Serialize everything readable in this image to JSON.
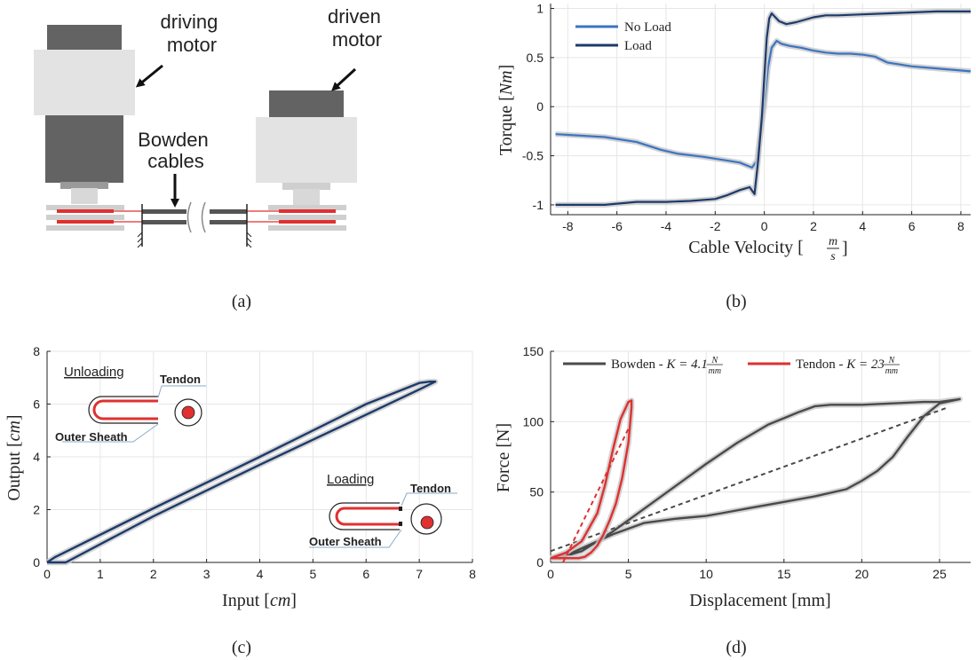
{
  "panels": {
    "a": {
      "caption": "(a)",
      "label_driving": "driving\nmotor",
      "label_driven": "driven\nmotor",
      "label_bowden": "Bowden\ncables",
      "colors": {
        "motor_dark": "#636363",
        "motor_light": "#e3e3e3",
        "cable": "#555555",
        "tendon": "#e03030",
        "rail": "#cfcfcf"
      }
    },
    "b": {
      "caption": "(b)"
    },
    "c": {
      "caption": "(c)",
      "inset_unloading": {
        "title": "Unloading",
        "tendon": "Tendon",
        "sheath": "Outer Sheath"
      },
      "inset_loading": {
        "title": "Loading",
        "tendon": "Tendon",
        "sheath": "Outer Sheath"
      }
    },
    "d": {
      "caption": "(d)"
    }
  },
  "chart_data": [
    {
      "id": "b",
      "type": "line",
      "title": "",
      "xlabel": "Cable Velocity",
      "xlabel_unit": {
        "num": "m",
        "den": "s"
      },
      "ylabel": "Torque",
      "ylabel_unit": "Nm",
      "xlim": [
        -8.7,
        8.4
      ],
      "ylim": [
        -1.1,
        1.05
      ],
      "xticks": [
        -8,
        -6,
        -4,
        -2,
        0,
        2,
        4,
        6,
        8
      ],
      "yticks": [
        -1,
        -0.5,
        0,
        0.5,
        1
      ],
      "ytick_labels": [
        "-1",
        "-0.5",
        "0",
        "0.5",
        "1"
      ],
      "grid": true,
      "legend": "top-left",
      "series": [
        {
          "name": "No Load",
          "color": "#3c74c2",
          "x": [
            -8.5,
            -6.5,
            -5.2,
            -4.2,
            -3.5,
            -2.5,
            -1.5,
            -1.0,
            -0.5,
            -0.3,
            -0.2,
            0.0,
            0.15,
            0.3,
            0.5,
            0.7,
            1.0,
            1.5,
            2.0,
            2.5,
            3.0,
            3.5,
            4.0,
            4.5,
            5.0,
            6.0,
            7.0,
            8.4
          ],
          "y": [
            -0.28,
            -0.31,
            -0.36,
            -0.44,
            -0.48,
            -0.51,
            -0.55,
            -0.57,
            -0.62,
            -0.55,
            -0.35,
            0.0,
            0.4,
            0.6,
            0.67,
            0.64,
            0.62,
            0.6,
            0.57,
            0.55,
            0.54,
            0.54,
            0.53,
            0.51,
            0.45,
            0.41,
            0.39,
            0.36
          ]
        },
        {
          "name": "Load",
          "color": "#1d3a6b",
          "x": [
            -8.5,
            -6.5,
            -5.2,
            -4.0,
            -3.0,
            -2.0,
            -1.5,
            -1.0,
            -0.6,
            -0.4,
            -0.25,
            -0.1,
            0.0,
            0.1,
            0.2,
            0.3,
            0.45,
            0.6,
            0.9,
            1.3,
            2.0,
            2.5,
            3.0,
            4.0,
            5.0,
            6.0,
            7.0,
            8.4
          ],
          "y": [
            -1.0,
            -1.0,
            -0.97,
            -0.97,
            -0.96,
            -0.94,
            -0.9,
            -0.85,
            -0.82,
            -0.89,
            -0.55,
            -0.1,
            0.3,
            0.7,
            0.9,
            0.95,
            0.91,
            0.87,
            0.84,
            0.86,
            0.91,
            0.93,
            0.93,
            0.94,
            0.95,
            0.96,
            0.97,
            0.97
          ]
        }
      ]
    },
    {
      "id": "c",
      "type": "line",
      "title": "",
      "xlabel": "Input",
      "xlabel_unit": "cm",
      "ylabel": "Output",
      "ylabel_unit": "cm",
      "xlim": [
        0,
        8
      ],
      "ylim": [
        0,
        8
      ],
      "xticks": [
        0,
        1,
        2,
        3,
        4,
        5,
        6,
        7,
        8
      ],
      "yticks": [
        0,
        2,
        4,
        6,
        8
      ],
      "grid": true,
      "series": [
        {
          "name": "",
          "color": "#1d3a6b",
          "x": [
            0.0,
            0.35,
            2.0,
            4.0,
            6.0,
            7.0,
            7.3,
            7.2,
            7.0,
            6.0,
            4.0,
            2.0,
            0.2,
            0.15,
            0.0
          ],
          "y": [
            0.0,
            0.0,
            1.75,
            3.7,
            5.6,
            6.55,
            6.85,
            6.85,
            6.8,
            6.0,
            4.0,
            2.05,
            0.25,
            0.2,
            0.0
          ]
        }
      ]
    },
    {
      "id": "d",
      "type": "line",
      "title": "",
      "xlabel": "Displacement [mm]",
      "ylabel": "Force [N]",
      "xlim": [
        0,
        27
      ],
      "ylim": [
        0,
        150
      ],
      "xticks": [
        0,
        5,
        10,
        15,
        20,
        25
      ],
      "yticks": [
        0,
        50,
        100,
        150
      ],
      "grid": true,
      "legend": "top",
      "legend_entries": [
        {
          "name": "Bowden",
          "k_label": "K = 4.1",
          "unit": {
            "num": "N",
            "den": "mm"
          },
          "color": "#4a4a4a"
        },
        {
          "name": "Tendon",
          "k_label": "K = 23",
          "unit": {
            "num": "N",
            "den": "mm"
          },
          "color": "#e03030"
        }
      ],
      "series": [
        {
          "name": "Bowden",
          "color": "#4a4a4a",
          "x": [
            0.5,
            2,
            3,
            4,
            5,
            6,
            8,
            10,
            12,
            14,
            16,
            17,
            18,
            20,
            22,
            24,
            25,
            26.3,
            26.3,
            25,
            24,
            23,
            22,
            21,
            20,
            19,
            17,
            15,
            13,
            11,
            10,
            8,
            6,
            4,
            2,
            1,
            0
          ],
          "y": [
            3,
            8,
            15,
            22,
            30,
            38,
            54,
            70,
            85,
            98,
            107,
            111,
            112,
            112,
            113,
            114,
            114,
            116,
            116,
            113,
            104,
            90,
            75,
            65,
            58,
            52,
            47,
            43,
            39,
            35,
            33,
            31,
            28,
            20,
            10,
            5,
            3
          ]
        },
        {
          "name": "Bowden fit",
          "color": "#4a4a4a",
          "dashed": true,
          "x": [
            0,
            25.5
          ],
          "y": [
            8,
            110
          ]
        },
        {
          "name": "Tendon",
          "color": "#e03030",
          "x": [
            0,
            1,
            2,
            3,
            3.5,
            4,
            4.5,
            5,
            5.2,
            5.2,
            5.0,
            4.6,
            4.2,
            3.8,
            3.4,
            3.0,
            2.6,
            2.2,
            1.8,
            1.4,
            1.0,
            0.8,
            0.5,
            0
          ],
          "y": [
            3,
            7,
            15,
            35,
            55,
            80,
            102,
            114,
            115,
            110,
            85,
            60,
            42,
            30,
            20,
            12,
            7,
            4,
            3,
            3,
            3,
            3,
            3,
            3
          ]
        },
        {
          "name": "Tendon fit",
          "color": "#e03030",
          "dashed": true,
          "x": [
            0.8,
            5.0
          ],
          "y": [
            0,
            95
          ]
        }
      ]
    }
  ]
}
